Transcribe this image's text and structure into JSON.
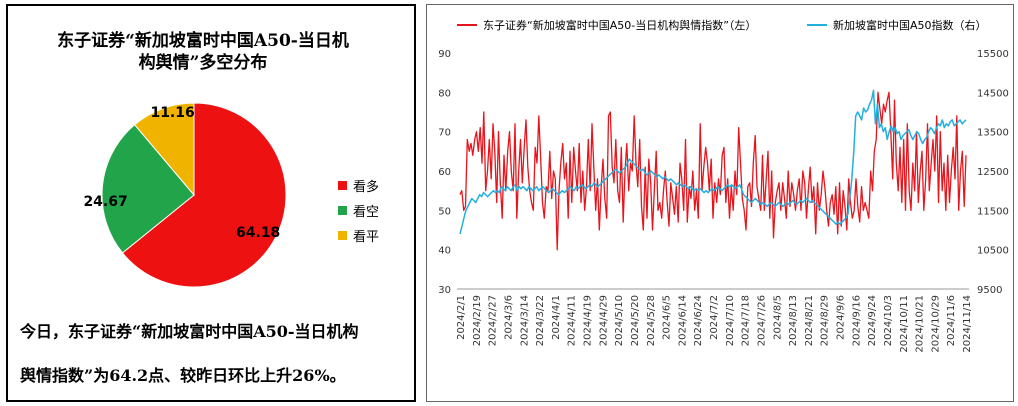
{
  "pie": {
    "title_line1": "东子证券“新加坡富时中国A50-当日机",
    "title_line2": "构舆情”多空分布",
    "legend": [
      {
        "label": "看多",
        "color": "#ee1111"
      },
      {
        "label": "看空",
        "color": "#22a54a"
      },
      {
        "label": "看平",
        "color": "#f0b400"
      }
    ]
  },
  "summary": {
    "line1": "今日，东子证券“新加坡富时中国A50-当日机构",
    "line2": "舆情指数”为64.2点、较昨日环比上升26%。"
  },
  "chart_data": [
    {
      "type": "pie",
      "labels": [
        "看多",
        "看空",
        "看平"
      ],
      "values": [
        64.18,
        24.67,
        11.16
      ],
      "value_labels": [
        "64.18",
        "24.67",
        "11.16"
      ],
      "colors": [
        "#ee1111",
        "#22a54a",
        "#f0b400"
      ]
    },
    {
      "type": "line",
      "legend_placement": "top",
      "series": [
        {
          "name": "东子证券“新加坡富时中国A50-当日机构舆情指数”（左）",
          "axis": "left",
          "color": "#e8141c",
          "values": [
            54,
            55,
            50,
            51,
            68,
            65,
            67,
            64,
            68,
            70,
            65,
            71,
            62,
            75,
            55,
            60,
            68,
            58,
            72,
            65,
            52,
            70,
            57,
            48,
            64,
            55,
            65,
            70,
            60,
            55,
            72,
            48,
            60,
            68,
            57,
            66,
            73,
            61,
            55,
            52,
            50,
            66,
            62,
            74,
            63,
            52,
            48,
            56,
            55,
            65,
            53,
            60,
            58,
            40,
            55,
            62,
            67,
            58,
            62,
            48,
            65,
            52,
            66,
            60,
            55,
            67,
            52,
            60,
            50,
            56,
            68,
            55,
            72,
            61,
            50,
            58,
            45,
            56,
            63,
            53,
            48,
            74,
            75,
            61,
            57,
            68,
            55,
            52,
            66,
            47,
            60,
            67,
            55,
            62,
            60,
            74,
            62,
            56,
            68,
            51,
            45,
            61,
            48,
            63,
            57,
            45,
            55,
            65,
            50,
            52,
            48,
            55,
            60,
            52,
            46,
            57,
            53,
            49,
            56,
            47,
            62,
            58,
            50,
            68,
            47,
            56,
            53,
            60,
            50,
            55,
            48,
            72,
            55,
            61,
            66,
            62,
            55,
            63,
            48,
            57,
            52,
            58,
            54,
            64,
            66,
            52,
            58,
            48,
            56,
            50,
            60,
            54,
            71,
            62,
            53,
            50,
            45,
            56,
            57,
            51,
            62,
            69,
            56,
            53,
            50,
            64,
            50,
            58,
            65,
            48,
            60,
            43,
            52,
            55,
            57,
            50,
            57,
            53,
            48,
            60,
            51,
            57,
            54,
            50,
            55,
            58,
            50,
            60,
            57,
            48,
            55,
            61,
            52,
            56,
            44,
            57,
            50,
            54,
            60,
            56,
            50,
            46,
            52,
            54,
            49,
            56,
            44,
            57,
            46,
            55,
            51,
            45,
            58,
            52,
            48,
            50,
            58,
            51,
            47,
            56,
            50,
            52,
            50,
            48,
            60,
            55,
            65,
            68,
            80,
            76,
            72,
            77,
            75,
            78,
            80,
            70,
            58,
            78,
            62,
            55,
            66,
            52,
            68,
            50,
            72,
            55,
            50,
            62,
            55,
            70,
            52,
            60,
            65,
            50,
            58,
            72,
            55,
            62,
            68,
            60,
            74,
            52,
            70,
            55,
            62,
            50,
            64,
            52,
            60,
            66,
            58,
            74,
            50,
            60,
            65,
            51,
            64
          ]
        },
        {
          "name": "新加坡富时中国A50指数（右）",
          "axis": "right",
          "color": "#22b0de",
          "values": [
            10900,
            11100,
            11300,
            11500,
            11600,
            11700,
            11800,
            11750,
            11700,
            11800,
            11900,
            11850,
            11950,
            11900,
            11850,
            11900,
            11950,
            12000,
            11950,
            12000,
            11950,
            12100,
            12050,
            12000,
            12100,
            12050,
            12000,
            12100,
            12150,
            12000,
            12100,
            12050,
            12100,
            12050,
            12000,
            12100,
            12050,
            12000,
            12050,
            12100,
            12000,
            12050,
            12100,
            12050,
            12000,
            11950,
            12000,
            12050,
            12000,
            11950,
            11900,
            11950,
            12000,
            11950,
            12000,
            12050,
            12100,
            12050,
            12000,
            12100,
            12050,
            12100,
            12150,
            12100,
            12050,
            12100,
            12150,
            12100,
            12200,
            12150,
            12100,
            12150,
            12200,
            12250,
            12300,
            12350,
            12400,
            12450,
            12500,
            12550,
            12500,
            12450,
            12500,
            12550,
            12600,
            12700,
            12800,
            12750,
            12700,
            12650,
            12600,
            12550,
            12500,
            12550,
            12450,
            12400,
            12450,
            12500,
            12450,
            12400,
            12350,
            12400,
            12350,
            12300,
            12350,
            12300,
            12250,
            12300,
            12250,
            12200,
            12150,
            12200,
            12150,
            12100,
            12150,
            12100,
            12050,
            12100,
            12050,
            12000,
            12050,
            12000,
            12050,
            12000,
            11950,
            12000,
            11950,
            12000,
            12050,
            12000,
            12050,
            12100,
            12050,
            12000,
            12050,
            12100,
            12150,
            12100,
            12150,
            12100,
            12050,
            12100,
            12150,
            12050,
            11900,
            11850,
            11800,
            11750,
            11700,
            11750,
            11800,
            11750,
            11700,
            11650,
            11700,
            11650,
            11600,
            11650,
            11700,
            11650,
            11600,
            11650,
            11700,
            11650,
            11600,
            11650,
            11700,
            11650,
            11700,
            11750,
            11700,
            11650,
            11700,
            11750,
            11700,
            11750,
            11800,
            11750,
            11700,
            11750,
            11700,
            11650,
            11600,
            11550,
            11500,
            11450,
            11400,
            11350,
            11300,
            11250,
            11200,
            11150,
            11200,
            11150,
            11200,
            11250,
            11300,
            11400,
            11800,
            12300,
            13000,
            13900,
            14000,
            13900,
            13800,
            14100,
            14000,
            14050,
            14200,
            14300,
            14550,
            13700,
            14200,
            13600,
            13700,
            13500,
            13600,
            13300,
            13500,
            13650,
            13500,
            13600,
            13450,
            13500,
            13300,
            13400,
            13450,
            13500,
            13550,
            13400,
            13300,
            13400,
            13500,
            13450,
            13300,
            13200,
            13300,
            13350,
            13500,
            13600,
            13550,
            13450,
            13600,
            13700,
            13650,
            13800,
            13600,
            13700,
            13650,
            13750,
            13800,
            13650,
            13700,
            13750,
            13800,
            13700,
            13750,
            13800
          ]
        }
      ],
      "x_labels": [
        "2024/2/1",
        "2024/2/19",
        "2024/2/27",
        "2024/3/6",
        "2024/3/14",
        "2024/3/22",
        "2024/4/1",
        "2024/4/11",
        "2024/4/19",
        "2024/4/29",
        "2024/5/10",
        "2024/5/20",
        "2024/5/28",
        "2024/6/5",
        "2024/6/14",
        "2024/6/24",
        "2024/7/2",
        "2024/7/10",
        "2024/7/18",
        "2024/7/26",
        "2024/8/5",
        "2024/8/13",
        "2024/8/21",
        "2024/8/29",
        "2024/9/6",
        "2024/9/16",
        "2024/9/24",
        "2024/10/3",
        "2024/10/11",
        "2024/10/21",
        "2024/10/29",
        "2024/11/6",
        "2024/11/14"
      ],
      "y_left": {
        "min": 30,
        "max": 90,
        "ticks": [
          30,
          40,
          50,
          60,
          70,
          80,
          90
        ]
      },
      "y_right": {
        "min": 9500,
        "max": 15500,
        "ticks": [
          9500,
          10500,
          11500,
          12500,
          13500,
          14500,
          15500
        ]
      }
    }
  ]
}
